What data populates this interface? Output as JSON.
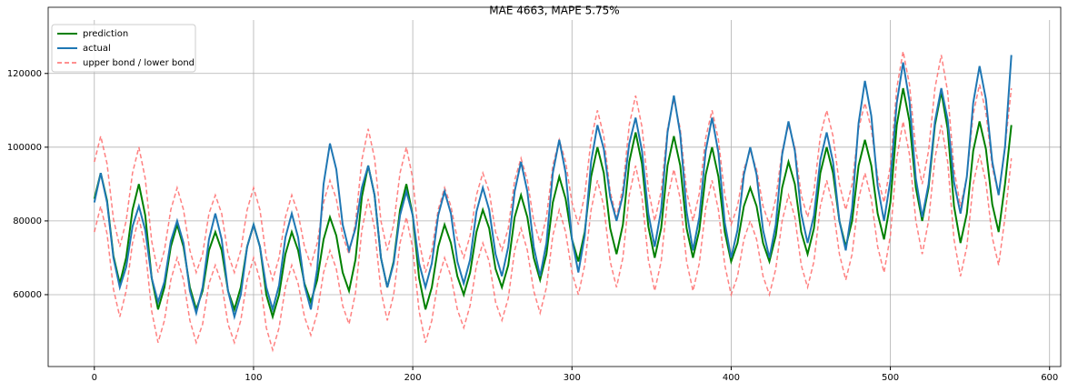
{
  "chart_data": {
    "type": "line",
    "title": "MAE 4663, MAPE 5.75%",
    "x": [
      0,
      4,
      8,
      12,
      16,
      20,
      24,
      28,
      32,
      36,
      40,
      44,
      48,
      52,
      56,
      60,
      64,
      68,
      72,
      76,
      80,
      84,
      88,
      92,
      96,
      100,
      104,
      108,
      112,
      116,
      120,
      124,
      128,
      132,
      136,
      140,
      144,
      148,
      152,
      156,
      160,
      164,
      168,
      172,
      176,
      180,
      184,
      188,
      192,
      196,
      200,
      204,
      208,
      212,
      216,
      220,
      224,
      228,
      232,
      236,
      240,
      244,
      248,
      252,
      256,
      260,
      264,
      268,
      272,
      276,
      280,
      284,
      288,
      292,
      296,
      300,
      304,
      308,
      312,
      316,
      320,
      324,
      328,
      332,
      336,
      340,
      344,
      348,
      352,
      356,
      360,
      364,
      368,
      372,
      376,
      380,
      384,
      388,
      392,
      396,
      400,
      404,
      408,
      412,
      416,
      420,
      424,
      428,
      432,
      436,
      440,
      444,
      448,
      452,
      456,
      460,
      464,
      468,
      472,
      476,
      480,
      484,
      488,
      492,
      496,
      500,
      504,
      508,
      512,
      516,
      520,
      524,
      528,
      532,
      536,
      540,
      544,
      548,
      552,
      556,
      560,
      564,
      568,
      572,
      576
    ],
    "series": [
      {
        "name": "prediction",
        "color": "#008000",
        "width": 2,
        "dashed": false,
        "values": [
          86000,
          93000,
          85500,
          70500,
          63000,
          70000,
          83000,
          90000,
          81500,
          64500,
          56000,
          62000,
          73000,
          79000,
          73000,
          62000,
          56000,
          61000,
          72000,
          77000,
          72000,
          61000,
          56000,
          62000,
          73000,
          79000,
          73000,
          60000,
          54000,
          60000,
          71000,
          77000,
          72000,
          63000,
          58000,
          64000,
          75000,
          81000,
          76000,
          66000,
          61000,
          69500,
          86500,
          95000,
          87000,
          70000,
          62000,
          69000,
          83000,
          90000,
          81500,
          64500,
          56000,
          62000,
          73000,
          79000,
          74000,
          65000,
          60000,
          66000,
          77000,
          83000,
          78000,
          67000,
          62000,
          68000,
          81000,
          87000,
          81000,
          70000,
          64000,
          71000,
          85000,
          92000,
          86000,
          75000,
          69000,
          77000,
          92000,
          100000,
          93000,
          78000,
          71000,
          79000,
          96000,
          104000,
          95500,
          78500,
          70000,
          78000,
          95000,
          103000,
          95000,
          78000,
          70000,
          77500,
          92500,
          100000,
          92000,
          77000,
          69000,
          74000,
          84000,
          89000,
          84000,
          74000,
          69000,
          76000,
          89000,
          96000,
          90000,
          77000,
          71000,
          78000,
          93000,
          100000,
          93000,
          80000,
          73000,
          80000,
          95000,
          102000,
          95000,
          82000,
          75000,
          85000,
          106000,
          116000,
          107000,
          89000,
          80000,
          89000,
          106000,
          115000,
          105000,
          84000,
          74000,
          82000,
          99000,
          107000,
          99500,
          84500,
          77000,
          90000,
          106000
        ]
      },
      {
        "name": "actual",
        "color": "#1f77b4",
        "width": 2,
        "dashed": false,
        "values": [
          85000,
          93000,
          85000,
          70000,
          62000,
          67500,
          78500,
          84000,
          77500,
          64500,
          58000,
          63500,
          74500,
          80000,
          74000,
          61000,
          55000,
          62000,
          75000,
          82000,
          75000,
          61000,
          54000,
          60000,
          73000,
          79000,
          73000,
          62000,
          56000,
          62500,
          75500,
          82000,
          75500,
          62500,
          56000,
          67000,
          90000,
          101000,
          94000,
          79000,
          72000,
          78000,
          89000,
          95000,
          87000,
          70000,
          62000,
          68500,
          81500,
          88000,
          81500,
          68500,
          62000,
          68500,
          81500,
          88000,
          82000,
          69000,
          63000,
          69500,
          82500,
          89000,
          83000,
          71000,
          65000,
          73000,
          88000,
          96000,
          88000,
          73000,
          65000,
          74000,
          93000,
          102000,
          93000,
          75000,
          66000,
          76000,
          96000,
          106000,
          99500,
          86500,
          80000,
          87000,
          101000,
          108000,
          99000,
          82000,
          73000,
          83000,
          104000,
          114000,
          103500,
          82500,
          72000,
          81000,
          99000,
          108000,
          98500,
          79500,
          70000,
          77500,
          92500,
          100000,
          92500,
          77500,
          70000,
          79000,
          98000,
          107000,
          99000,
          82000,
          74000,
          81500,
          96500,
          104000,
          96000,
          80000,
          72000,
          83500,
          106500,
          118000,
          108500,
          89500,
          80000,
          91000,
          112000,
          123000,
          112500,
          91500,
          81000,
          90000,
          107000,
          116000,
          107500,
          90500,
          82000,
          92000,
          112000,
          122000,
          113000,
          96000,
          87000,
          100000,
          125000
        ]
      },
      {
        "name": "upper bond / lower bond",
        "color": "#ff6b6b",
        "width": 1.5,
        "dashed": true,
        "values": [
          96000,
          103000,
          95500,
          80500,
          73000,
          80000,
          93000,
          100000,
          91500,
          74500,
          66000,
          72000,
          83000,
          89000,
          83000,
          72000,
          66000,
          71000,
          82000,
          87000,
          82000,
          71000,
          66000,
          72000,
          83000,
          89000,
          83000,
          70000,
          64000,
          70000,
          81000,
          87000,
          82000,
          73000,
          68000,
          74000,
          85000,
          91000,
          86000,
          76000,
          71000,
          79500,
          96500,
          105000,
          97000,
          80000,
          72000,
          79000,
          93000,
          100000,
          91500,
          74500,
          66000,
          72000,
          83000,
          89000,
          84000,
          75000,
          70000,
          76000,
          87000,
          93000,
          88000,
          77000,
          72000,
          78000,
          91000,
          97000,
          91000,
          80000,
          74000,
          81000,
          95000,
          102000,
          96000,
          85000,
          79000,
          87000,
          102000,
          110000,
          103000,
          88000,
          81000,
          89000,
          106000,
          114000,
          105500,
          88500,
          80000,
          88000,
          105000,
          113000,
          105000,
          88000,
          80000,
          87500,
          102500,
          110000,
          102000,
          87000,
          79000,
          84000,
          94000,
          99000,
          94000,
          84000,
          79000,
          86000,
          99000,
          106000,
          100000,
          87000,
          81000,
          88000,
          103000,
          110000,
          103000,
          90000,
          83000,
          90000,
          105000,
          112000,
          105000,
          92000,
          85000,
          95000,
          116000,
          126000,
          117000,
          99000,
          90000,
          99000,
          116000,
          125000,
          115000,
          94000,
          84000,
          92000,
          109000,
          117000,
          109500,
          94500,
          87000,
          100000,
          116000
        ]
      },
      {
        "color": "#ff6b6b",
        "width": 1.5,
        "dashed": true,
        "values": [
          77000,
          84000,
          76500,
          61500,
          54000,
          61000,
          74000,
          81000,
          72500,
          55500,
          47000,
          53000,
          64000,
          70000,
          64000,
          53000,
          47000,
          52000,
          63000,
          68000,
          63000,
          52000,
          47000,
          53000,
          64000,
          70000,
          64000,
          51000,
          45000,
          51000,
          62000,
          68000,
          63000,
          54000,
          49000,
          55000,
          66000,
          72000,
          67000,
          57000,
          52000,
          60500,
          77500,
          86000,
          78000,
          61000,
          53000,
          60000,
          74000,
          81000,
          72500,
          55500,
          47000,
          53000,
          64000,
          70000,
          65000,
          56000,
          51000,
          57000,
          68000,
          74000,
          69000,
          58000,
          53000,
          59000,
          72000,
          78000,
          72000,
          61000,
          55000,
          62000,
          76000,
          83000,
          77000,
          66000,
          60000,
          68000,
          83000,
          91000,
          84000,
          69000,
          62000,
          70000,
          87000,
          95000,
          86500,
          69500,
          61000,
          69000,
          86000,
          94000,
          86000,
          69000,
          61000,
          68500,
          83500,
          91000,
          83000,
          68000,
          60000,
          65000,
          75000,
          80000,
          75000,
          65000,
          60000,
          67000,
          80000,
          87000,
          81000,
          68000,
          62000,
          69000,
          84000,
          91000,
          84000,
          71000,
          64000,
          71000,
          86000,
          93000,
          86000,
          73000,
          66000,
          76000,
          97000,
          107000,
          98000,
          80000,
          71000,
          80000,
          97000,
          106000,
          96000,
          75000,
          65000,
          73000,
          90000,
          98000,
          90500,
          75500,
          68000,
          81000,
          97000
        ]
      }
    ],
    "xlim": [
      -29,
      607
    ],
    "xticks": [
      0,
      100,
      200,
      300,
      400,
      500,
      600
    ],
    "ylim": [
      40500,
      134500
    ],
    "yticks": [
      60000,
      80000,
      100000,
      120000
    ],
    "grid": true,
    "legend": "upper-left"
  }
}
